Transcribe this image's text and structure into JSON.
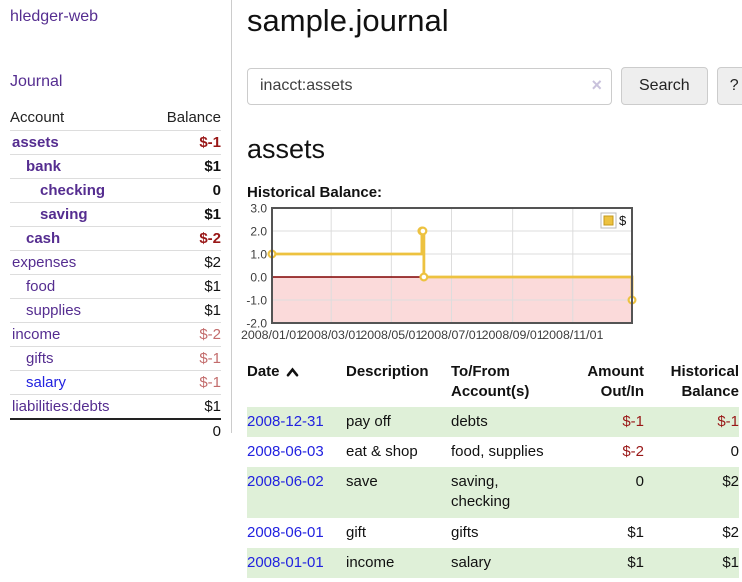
{
  "app": {
    "brand": "hledger-web",
    "journal_label": "Journal"
  },
  "header": {
    "title": "sample.journal"
  },
  "search": {
    "value": "inacct:assets",
    "clear_icon": "×",
    "button_label": "Search",
    "help_label": "?"
  },
  "main": {
    "account_title": "assets",
    "chart_label": "Historical Balance:"
  },
  "sidebar": {
    "headers": [
      "Account",
      "Balance"
    ],
    "rows": [
      {
        "account": "assets",
        "balance": "$-1",
        "depth": 1,
        "bold": true
      },
      {
        "account": "bank",
        "balance": "$1",
        "depth": 2,
        "bold": true
      },
      {
        "account": "checking",
        "balance": "0",
        "depth": 3,
        "bold": true
      },
      {
        "account": "saving",
        "balance": "$1",
        "depth": 3,
        "bold": true
      },
      {
        "account": "cash",
        "balance": "$-2",
        "depth": 2,
        "bold": true
      },
      {
        "account": "expenses",
        "balance": "$2",
        "depth": 1,
        "bold": false
      },
      {
        "account": "food",
        "balance": "$1",
        "depth": 2,
        "bold": false
      },
      {
        "account": "supplies",
        "balance": "$1",
        "depth": 2,
        "bold": false
      },
      {
        "account": "income",
        "balance": "$-2",
        "depth": 1,
        "bold": false
      },
      {
        "account": "gifts",
        "balance": "$-1",
        "depth": 2,
        "bold": false
      },
      {
        "account": "salary",
        "balance": "$-1",
        "depth": 2,
        "bold": false,
        "blue": true
      },
      {
        "account": "liabilities:debts",
        "balance": "$1",
        "depth": 1,
        "bold": false
      }
    ],
    "total": "0"
  },
  "chart_data": {
    "type": "line",
    "step": true,
    "title": "Historical Balance",
    "series": [
      {
        "name": "$",
        "color": "#edc240",
        "points": [
          [
            "2008/01/01",
            1
          ],
          [
            "2008/06/01",
            2
          ],
          [
            "2008/06/02",
            2
          ],
          [
            "2008/06/03",
            0
          ],
          [
            "2008/12/31",
            -1
          ]
        ]
      }
    ],
    "xlim": [
      "2008/01/01",
      "2008/12/31"
    ],
    "ylim": [
      -2,
      3
    ],
    "yticks": [
      3,
      2,
      1,
      0,
      -1,
      -2
    ],
    "xticks": [
      "2008/01/01",
      "2008/03/01",
      "2008/05/01",
      "2008/07/01",
      "2008/09/01",
      "2008/11/01"
    ],
    "legend_position": "top-right",
    "grid": true,
    "zero_line_color": "#800000",
    "negative_region_color": "#fbdada"
  },
  "register": {
    "headers": [
      "Date",
      "Description",
      "To/From Account(s)",
      "Amount Out/In",
      "Historical Balance"
    ],
    "sort": {
      "column": "Date",
      "direction": "asc"
    },
    "rows": [
      {
        "date": "2008-12-31",
        "description": "pay off",
        "accounts": "debts",
        "amount": "$-1",
        "balance": "$-1"
      },
      {
        "date": "2008-06-03",
        "description": "eat & shop",
        "accounts": "food, supplies",
        "amount": "$-2",
        "balance": "0"
      },
      {
        "date": "2008-06-02",
        "description": "save",
        "accounts": "saving, checking",
        "amount": "0",
        "balance": "$2"
      },
      {
        "date": "2008-06-01",
        "description": "gift",
        "accounts": "gifts",
        "amount": "$1",
        "balance": "$2"
      },
      {
        "date": "2008-01-01",
        "description": "income",
        "accounts": "salary",
        "amount": "$1",
        "balance": "$1"
      }
    ]
  },
  "colors": {
    "link_purple": "#552d90",
    "link_blue": "#2222e0",
    "negative_strong": "#991717",
    "negative_muted": "#c36c6c",
    "row_stripe_green": "#dff0d8",
    "chart_line_gold": "#edc240"
  }
}
